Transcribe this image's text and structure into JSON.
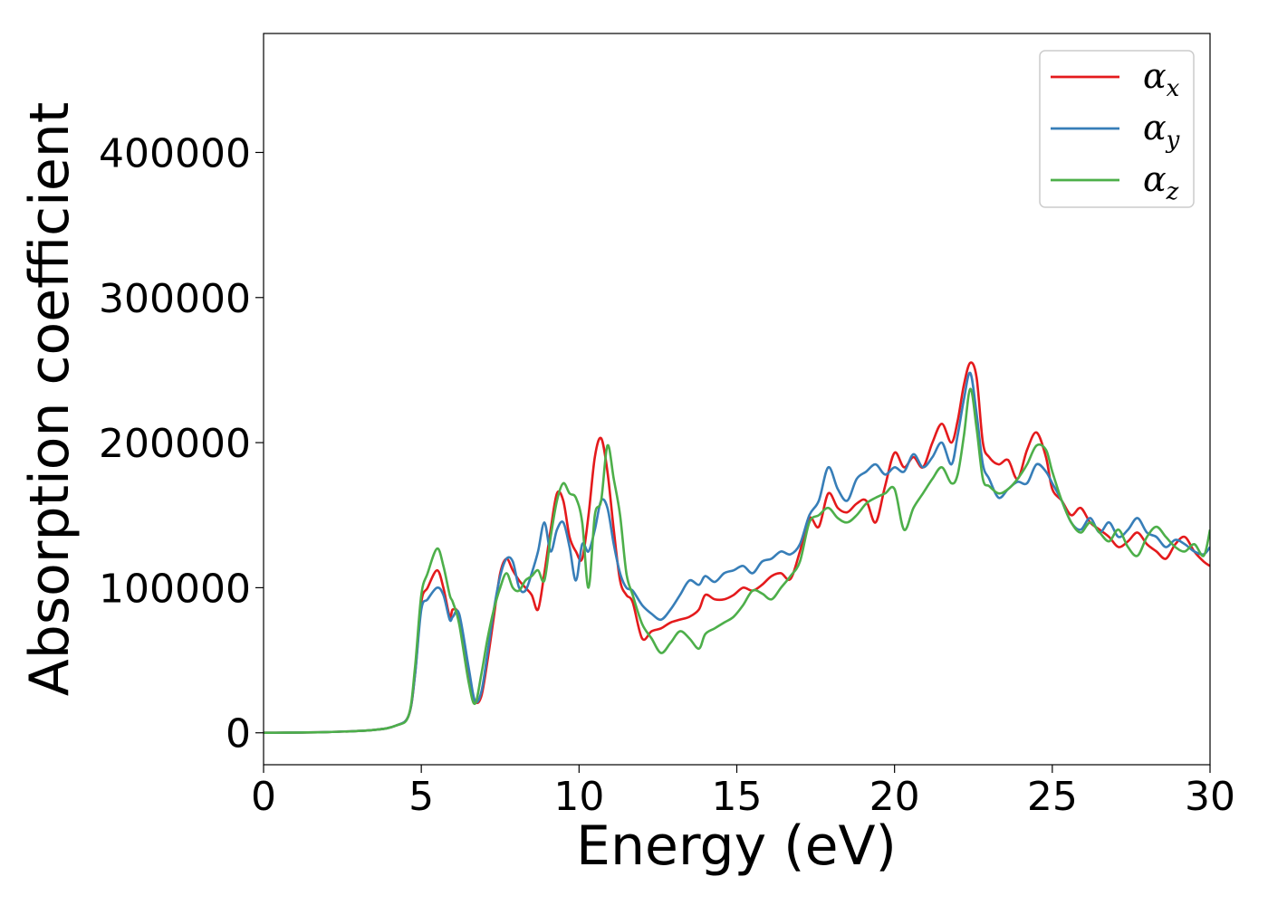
{
  "chart_data": {
    "type": "line",
    "xlabel": "Energy (eV)",
    "ylabel": "Absorption coefficient",
    "xlim": [
      0,
      30
    ],
    "ylim": [
      -22000,
      482000
    ],
    "x_ticks": [
      0,
      5,
      10,
      15,
      20,
      25,
      30
    ],
    "y_ticks": [
      0,
      100000,
      200000,
      300000,
      400000
    ],
    "grid": false,
    "legend": {
      "placement": "top-right",
      "entries": [
        {
          "symbol": "α",
          "sub": "x",
          "color": "#e41a1c"
        },
        {
          "symbol": "α",
          "sub": "y",
          "color": "#377eb8"
        },
        {
          "symbol": "α",
          "sub": "z",
          "color": "#4daf4a"
        }
      ]
    },
    "series": [
      {
        "color": "#e41a1c",
        "x": [
          0,
          2,
          3.5,
          4.2,
          4.6,
          4.8,
          5.0,
          5.2,
          5.5,
          5.7,
          5.9,
          6.0,
          6.2,
          6.5,
          6.7,
          6.9,
          7.1,
          7.3,
          7.5,
          7.7,
          7.9,
          8.1,
          8.3,
          8.5,
          8.7,
          8.9,
          9.1,
          9.3,
          9.5,
          9.7,
          9.9,
          10.1,
          10.3,
          10.5,
          10.7,
          10.9,
          11.1,
          11.3,
          11.5,
          11.7,
          12.0,
          12.3,
          12.6,
          12.9,
          13.2,
          13.5,
          13.8,
          14.0,
          14.3,
          14.6,
          14.9,
          15.2,
          15.5,
          15.8,
          16.1,
          16.4,
          16.7,
          17.0,
          17.3,
          17.6,
          17.9,
          18.2,
          18.5,
          18.8,
          19.1,
          19.4,
          19.7,
          20.0,
          20.3,
          20.6,
          20.9,
          21.2,
          21.5,
          21.8,
          22.0,
          22.2,
          22.4,
          22.6,
          22.8,
          23.0,
          23.3,
          23.6,
          23.9,
          24.2,
          24.5,
          24.8,
          25.0,
          25.3,
          25.6,
          25.9,
          26.2,
          26.5,
          26.8,
          27.1,
          27.4,
          27.7,
          28.0,
          28.3,
          28.6,
          28.9,
          29.2,
          29.5,
          29.8,
          30.0
        ],
        "values": [
          0,
          500,
          2000,
          5000,
          12000,
          40000,
          90000,
          100000,
          112000,
          100000,
          80000,
          85000,
          80000,
          40000,
          22000,
          25000,
          50000,
          80000,
          110000,
          120000,
          112000,
          105000,
          100000,
          95000,
          85000,
          110000,
          140000,
          165000,
          160000,
          135000,
          125000,
          120000,
          150000,
          190000,
          203000,
          180000,
          140000,
          105000,
          95000,
          90000,
          65000,
          70000,
          72000,
          76000,
          78000,
          80000,
          85000,
          95000,
          92000,
          92000,
          95000,
          100000,
          98000,
          102000,
          108000,
          110000,
          106000,
          125000,
          148000,
          142000,
          165000,
          155000,
          152000,
          158000,
          160000,
          145000,
          170000,
          193000,
          183000,
          190000,
          183000,
          200000,
          213000,
          200000,
          215000,
          240000,
          255000,
          245000,
          200000,
          190000,
          185000,
          188000,
          175000,
          195000,
          207000,
          190000,
          168000,
          160000,
          150000,
          155000,
          145000,
          140000,
          135000,
          128000,
          132000,
          138000,
          130000,
          125000,
          120000,
          130000,
          135000,
          125000,
          118000,
          115000
        ]
      },
      {
        "color": "#377eb8",
        "x": [
          0,
          2,
          3.5,
          4.2,
          4.6,
          4.8,
          5.0,
          5.2,
          5.5,
          5.7,
          5.9,
          6.0,
          6.2,
          6.5,
          6.7,
          6.9,
          7.1,
          7.3,
          7.5,
          7.7,
          7.9,
          8.1,
          8.3,
          8.5,
          8.7,
          8.9,
          9.1,
          9.3,
          9.5,
          9.7,
          9.9,
          10.1,
          10.3,
          10.5,
          10.7,
          10.9,
          11.1,
          11.3,
          11.5,
          11.7,
          12.0,
          12.3,
          12.6,
          12.9,
          13.2,
          13.5,
          13.8,
          14.0,
          14.3,
          14.6,
          14.9,
          15.2,
          15.5,
          15.8,
          16.1,
          16.4,
          16.7,
          17.0,
          17.3,
          17.6,
          17.9,
          18.2,
          18.5,
          18.8,
          19.1,
          19.4,
          19.7,
          20.0,
          20.3,
          20.6,
          20.9,
          21.2,
          21.5,
          21.8,
          22.0,
          22.2,
          22.4,
          22.6,
          22.8,
          23.0,
          23.3,
          23.6,
          23.9,
          24.2,
          24.5,
          24.8,
          25.0,
          25.3,
          25.6,
          25.9,
          26.2,
          26.5,
          26.8,
          27.1,
          27.4,
          27.7,
          28.0,
          28.3,
          28.6,
          28.9,
          29.2,
          29.5,
          29.8,
          30.0
        ],
        "values": [
          0,
          500,
          2000,
          5000,
          12000,
          40000,
          85000,
          92000,
          100000,
          95000,
          78000,
          80000,
          82000,
          45000,
          22000,
          28000,
          55000,
          85000,
          108000,
          120000,
          118000,
          100000,
          98000,
          110000,
          125000,
          145000,
          125000,
          140000,
          145000,
          128000,
          105000,
          130000,
          125000,
          140000,
          160000,
          155000,
          130000,
          110000,
          100000,
          98000,
          88000,
          82000,
          78000,
          85000,
          95000,
          105000,
          102000,
          108000,
          104000,
          110000,
          112000,
          115000,
          110000,
          118000,
          120000,
          125000,
          123000,
          130000,
          150000,
          160000,
          183000,
          168000,
          160000,
          175000,
          180000,
          185000,
          178000,
          183000,
          180000,
          192000,
          183000,
          190000,
          200000,
          185000,
          205000,
          230000,
          248000,
          220000,
          185000,
          175000,
          162000,
          168000,
          173000,
          172000,
          185000,
          180000,
          172000,
          160000,
          145000,
          140000,
          148000,
          138000,
          145000,
          135000,
          140000,
          148000,
          138000,
          135000,
          128000,
          133000,
          130000,
          125000,
          123000,
          128000
        ]
      },
      {
        "color": "#4daf4a",
        "x": [
          0,
          2,
          3.5,
          4.2,
          4.6,
          4.8,
          5.0,
          5.2,
          5.5,
          5.7,
          5.9,
          6.0,
          6.2,
          6.5,
          6.7,
          6.9,
          7.1,
          7.3,
          7.5,
          7.7,
          7.9,
          8.1,
          8.3,
          8.5,
          8.7,
          8.9,
          9.1,
          9.3,
          9.5,
          9.7,
          9.9,
          10.1,
          10.3,
          10.5,
          10.7,
          10.9,
          11.1,
          11.3,
          11.5,
          11.7,
          12.0,
          12.3,
          12.6,
          12.9,
          13.2,
          13.5,
          13.8,
          14.0,
          14.3,
          14.6,
          14.9,
          15.2,
          15.5,
          15.8,
          16.1,
          16.4,
          16.7,
          17.0,
          17.3,
          17.6,
          17.9,
          18.2,
          18.5,
          18.8,
          19.1,
          19.4,
          19.7,
          20.0,
          20.3,
          20.6,
          20.9,
          21.2,
          21.5,
          21.8,
          22.0,
          22.2,
          22.4,
          22.6,
          22.8,
          23.0,
          23.3,
          23.6,
          23.9,
          24.2,
          24.5,
          24.8,
          25.0,
          25.3,
          25.6,
          25.9,
          26.2,
          26.5,
          26.8,
          27.1,
          27.4,
          27.7,
          28.0,
          28.3,
          28.6,
          28.9,
          29.2,
          29.5,
          29.8,
          30.0
        ],
        "values": [
          0,
          500,
          2000,
          5000,
          12000,
          45000,
          95000,
          110000,
          127000,
          115000,
          95000,
          90000,
          75000,
          35000,
          20000,
          40000,
          65000,
          85000,
          100000,
          110000,
          100000,
          98000,
          105000,
          108000,
          112000,
          105000,
          135000,
          160000,
          172000,
          165000,
          162000,
          145000,
          100000,
          150000,
          160000,
          198000,
          175000,
          150000,
          110000,
          95000,
          75000,
          65000,
          55000,
          62000,
          70000,
          65000,
          58000,
          68000,
          72000,
          76000,
          80000,
          88000,
          98000,
          96000,
          92000,
          100000,
          108000,
          118000,
          145000,
          150000,
          155000,
          148000,
          145000,
          150000,
          158000,
          162000,
          165000,
          168000,
          140000,
          155000,
          165000,
          175000,
          183000,
          172000,
          178000,
          205000,
          237000,
          210000,
          175000,
          170000,
          165000,
          168000,
          175000,
          185000,
          198000,
          195000,
          180000,
          160000,
          145000,
          138000,
          145000,
          138000,
          132000,
          140000,
          128000,
          122000,
          135000,
          142000,
          135000,
          128000,
          125000,
          130000,
          122000,
          140000
        ]
      }
    ]
  }
}
